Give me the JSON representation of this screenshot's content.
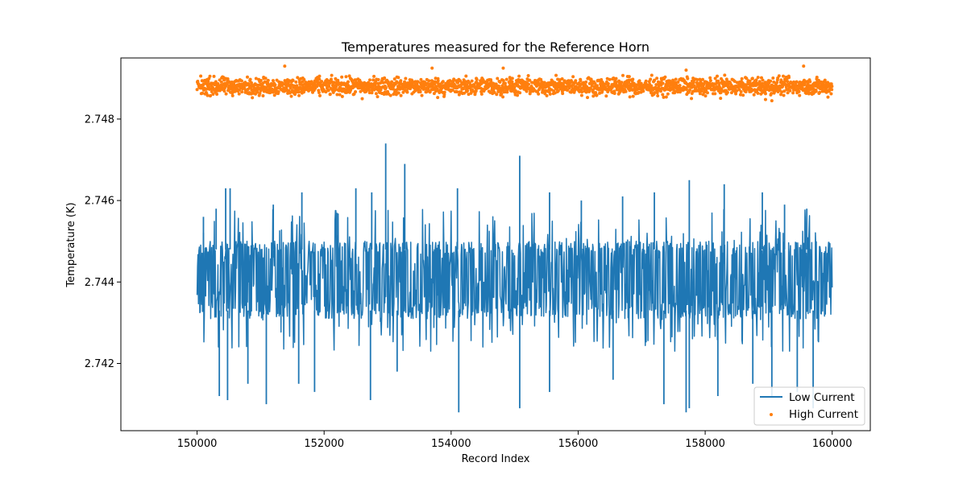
{
  "chart_data": {
    "type": "line",
    "title": "Temperatures measured for the Reference Horn",
    "xlabel": "Record Index",
    "ylabel": "Temperature (K)",
    "xlim": [
      148800,
      160600
    ],
    "ylim": [
      2.74035,
      2.7495
    ],
    "x_ticks": [
      150000,
      152000,
      154000,
      156000,
      158000,
      160000
    ],
    "x_tick_labels": [
      "150000",
      "152000",
      "154000",
      "156000",
      "158000",
      "160000"
    ],
    "y_ticks": [
      2.742,
      2.744,
      2.746,
      2.748
    ],
    "y_tick_labels": [
      "2.742",
      "2.744",
      "2.746",
      "2.748"
    ],
    "grid": false,
    "legend_position": "lower-right",
    "series": [
      {
        "name": "Low Current",
        "style": "line",
        "color": "#1f77b4",
        "x_range": [
          150000,
          160000
        ],
        "band_low": 2.7431,
        "band_high": 2.745,
        "spikes_up": [
          {
            "x": 150100,
            "y": 2.7456
          },
          {
            "x": 150300,
            "y": 2.7458
          },
          {
            "x": 150450,
            "y": 2.7463
          },
          {
            "x": 150520,
            "y": 2.7463
          },
          {
            "x": 151200,
            "y": 2.7459
          },
          {
            "x": 151650,
            "y": 2.7462
          },
          {
            "x": 152200,
            "y": 2.7457
          },
          {
            "x": 152500,
            "y": 2.7463
          },
          {
            "x": 152750,
            "y": 2.7462
          },
          {
            "x": 152970,
            "y": 2.7474
          },
          {
            "x": 153270,
            "y": 2.7469
          },
          {
            "x": 154100,
            "y": 2.7463
          },
          {
            "x": 155080,
            "y": 2.7471
          },
          {
            "x": 155550,
            "y": 2.7462
          },
          {
            "x": 156050,
            "y": 2.746
          },
          {
            "x": 156700,
            "y": 2.7461
          },
          {
            "x": 157200,
            "y": 2.7462
          },
          {
            "x": 157750,
            "y": 2.7465
          },
          {
            "x": 158300,
            "y": 2.7464
          },
          {
            "x": 158900,
            "y": 2.7462
          },
          {
            "x": 159250,
            "y": 2.7459
          },
          {
            "x": 159600,
            "y": 2.7458
          }
        ],
        "spikes_down": [
          {
            "x": 150350,
            "y": 2.7412
          },
          {
            "x": 150480,
            "y": 2.7411
          },
          {
            "x": 150800,
            "y": 2.7415
          },
          {
            "x": 151090,
            "y": 2.741
          },
          {
            "x": 151600,
            "y": 2.7415
          },
          {
            "x": 151850,
            "y": 2.7413
          },
          {
            "x": 152730,
            "y": 2.7411
          },
          {
            "x": 153150,
            "y": 2.7418
          },
          {
            "x": 154120,
            "y": 2.7408
          },
          {
            "x": 155080,
            "y": 2.7409
          },
          {
            "x": 155550,
            "y": 2.7413
          },
          {
            "x": 156550,
            "y": 2.7416
          },
          {
            "x": 157350,
            "y": 2.741
          },
          {
            "x": 157700,
            "y": 2.7408
          },
          {
            "x": 157750,
            "y": 2.7409
          },
          {
            "x": 158200,
            "y": 2.7412
          },
          {
            "x": 158750,
            "y": 2.7415
          },
          {
            "x": 159050,
            "y": 2.7412
          },
          {
            "x": 159450,
            "y": 2.7413
          },
          {
            "x": 159700,
            "y": 2.7409
          }
        ]
      },
      {
        "name": "High Current",
        "style": "scatter",
        "color": "#ff7f0e",
        "x_range": [
          150000,
          160000
        ],
        "band_low": 2.74865,
        "band_high": 2.749,
        "mean": 2.7488,
        "outliers": [
          {
            "x": 151380,
            "y": 2.7493
          },
          {
            "x": 153700,
            "y": 2.74925
          },
          {
            "x": 154820,
            "y": 2.74925
          },
          {
            "x": 157700,
            "y": 2.7492
          },
          {
            "x": 159550,
            "y": 2.7493
          },
          {
            "x": 159050,
            "y": 2.74845
          },
          {
            "x": 152600,
            "y": 2.7485
          },
          {
            "x": 158950,
            "y": 2.74848
          }
        ]
      }
    ]
  }
}
